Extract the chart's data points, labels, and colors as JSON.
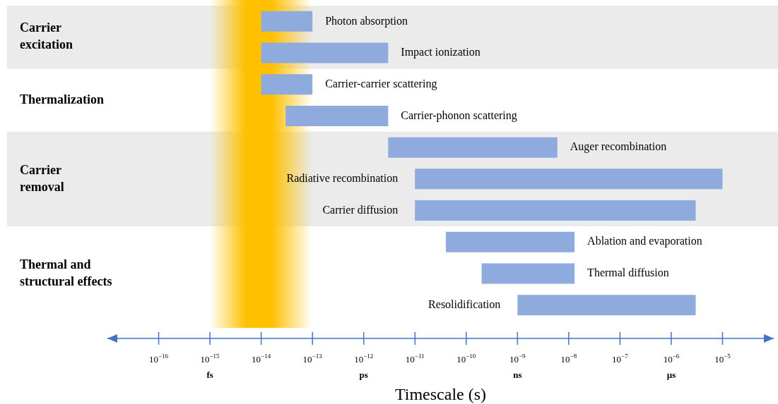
{
  "chart_data": {
    "type": "bar",
    "orientation": "horizontal",
    "xlabel": "Timescale (s)",
    "categories": [
      "Photon absorption",
      "Impact ionization",
      "Carrier-carrier scattering",
      "Carrier-phonon scattering",
      "Auger recombination",
      "Radiative recombination",
      "Carrier diffusion",
      "Ablation and evaporation",
      "Thermal diffusion",
      "Resolidification"
    ],
    "base": [
      1e-14,
      1e-14,
      1e-14,
      3e-14,
      3e-12,
      1e-11,
      1e-11,
      4e-11,
      2e-10,
      1e-09
    ],
    "values": [
      9e-14,
      2.99e-12,
      9e-14,
      2.97e-12,
      5.997e-09,
      9.99999e-06,
      2.99999e-06,
      1.296e-08,
      1.28e-08,
      2.999e-06
    ],
    "color": "#8faadc",
    "log": "x",
    "xlim": [
      1e-17,
      0.0001
    ],
    "xticks": [
      {
        "value": 1e-16,
        "label": "10$^{−16}$"
      },
      {
        "value": 1e-15,
        "label": "10$^{−15}$"
      },
      {
        "value": 1e-14,
        "label": "10$^{−14}$"
      },
      {
        "value": 1e-13,
        "label": "10$^{−13}$"
      },
      {
        "value": 1e-12,
        "label": "10$^{−12}$"
      },
      {
        "value": 1e-11,
        "label": "10$^{−11}$"
      },
      {
        "value": 1e-10,
        "label": "10$^{−10}$"
      },
      {
        "value": 1e-09,
        "label": "10$^{−9}$"
      },
      {
        "value": 1e-08,
        "label": "10$^{−8}$"
      },
      {
        "value": 1e-07,
        "label": "10$^{−7}$"
      },
      {
        "value": 1e-06,
        "label": "10$^{−6}$"
      },
      {
        "value": 1e-05,
        "label": "10$^{−5}$"
      }
    ],
    "bands": [
      {
        "axis": "y",
        "from": "Photon absorption",
        "to": "Impact ionization",
        "label": "Carrier excitation",
        "color": "#ebebeb"
      },
      {
        "axis": "y",
        "from": "Auger recombination",
        "to": "Carrier diffusion",
        "label": "Carrier removal",
        "color": "#ebebeb"
      },
      {
        "axis": "x",
        "from": 1e-15,
        "to": 1e-13,
        "color": "#ffc000"
      }
    ],
    "annotations": [
      "Thermalization",
      "Thermal and structural effects",
      "fs",
      "ps",
      "ns",
      "µs"
    ],
    "grid": false,
    "legend": false,
    "tick_labels": "x"
  }
}
